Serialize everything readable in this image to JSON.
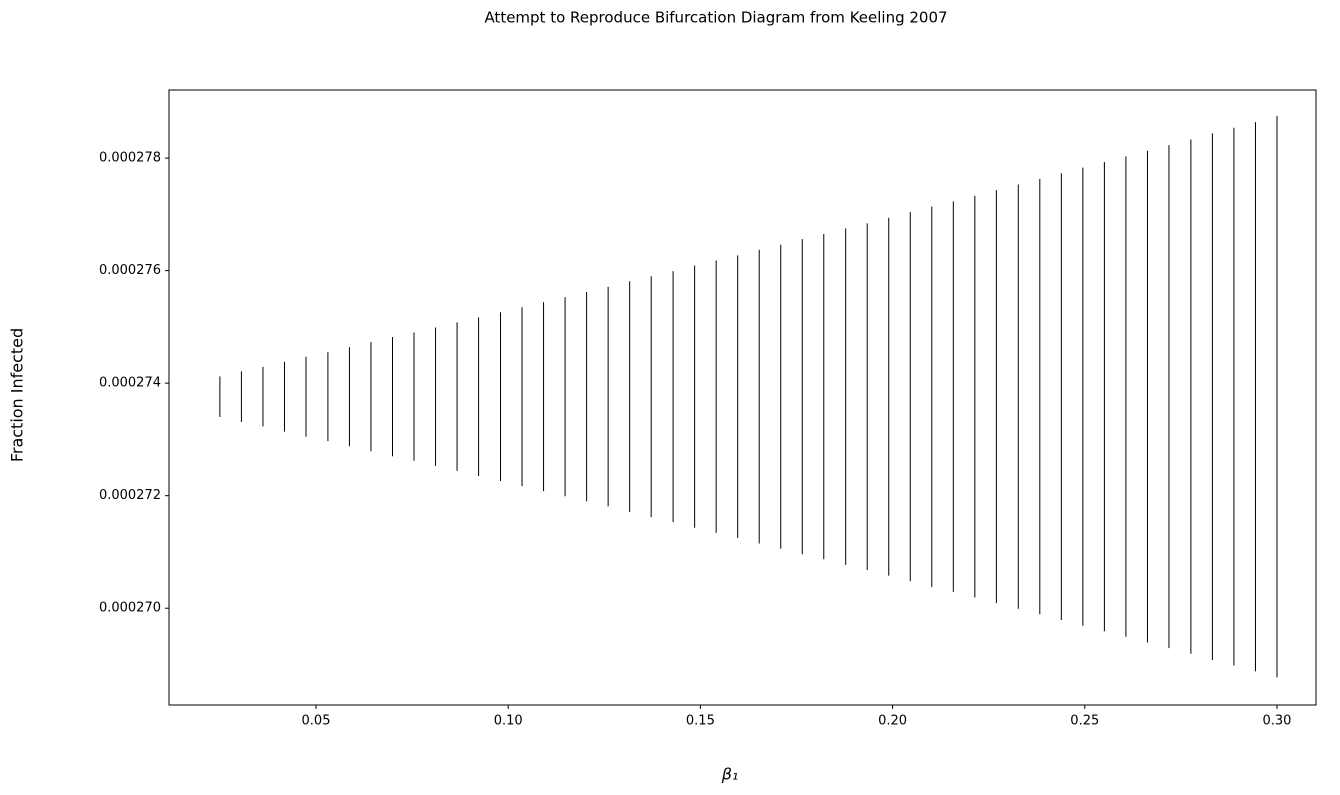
{
  "chart_data": {
    "type": "range",
    "title": "Attempt to Reproduce Bifurcation Diagram from Keeling 2007",
    "xlabel": "β₁",
    "ylabel": "Fraction Infected",
    "color": "#000000",
    "x": [
      0.025,
      0.0306,
      0.0362,
      0.0418,
      0.0474,
      0.0531,
      0.0587,
      0.0643,
      0.0699,
      0.0755,
      0.0811,
      0.0867,
      0.0923,
      0.098,
      0.1036,
      0.1092,
      0.1148,
      0.1204,
      0.126,
      0.1316,
      0.1372,
      0.1429,
      0.1485,
      0.1541,
      0.1597,
      0.1653,
      0.1709,
      0.1765,
      0.1821,
      0.1878,
      0.1934,
      0.199,
      0.2046,
      0.2102,
      0.2158,
      0.2214,
      0.227,
      0.2327,
      0.2383,
      0.2439,
      0.2495,
      0.2551,
      0.2607,
      0.2663,
      0.2719,
      0.2776,
      0.2832,
      0.2888,
      0.2944,
      0.3
    ],
    "high": [
      0.00027412,
      0.00027421,
      0.00027429,
      0.00027438,
      0.00027447,
      0.00027455,
      0.00027464,
      0.00027473,
      0.00027482,
      0.0002749,
      0.00027499,
      0.00027508,
      0.00027517,
      0.00027526,
      0.00027535,
      0.00027544,
      0.00027553,
      0.00027562,
      0.00027571,
      0.00027581,
      0.0002759,
      0.00027599,
      0.00027609,
      0.00027618,
      0.00027627,
      0.00027637,
      0.00027646,
      0.00027656,
      0.00027665,
      0.00027675,
      0.00027684,
      0.00027694,
      0.00027704,
      0.00027714,
      0.00027723,
      0.00027733,
      0.00027743,
      0.00027753,
      0.00027763,
      0.00027773,
      0.00027783,
      0.00027793,
      0.00027803,
      0.00027813,
      0.00027823,
      0.00027833,
      0.00027844,
      0.00027854,
      0.00027864,
      0.00027875
    ],
    "low": [
      0.0002734,
      0.00027331,
      0.00027323,
      0.00027314,
      0.00027305,
      0.00027297,
      0.00027288,
      0.00027279,
      0.0002727,
      0.00027262,
      0.00027253,
      0.00027244,
      0.00027235,
      0.00027226,
      0.00027217,
      0.00027208,
      0.00027199,
      0.0002719,
      0.00027181,
      0.00027171,
      0.00027162,
      0.00027153,
      0.00027143,
      0.00027134,
      0.00027125,
      0.00027115,
      0.00027106,
      0.00027096,
      0.00027087,
      0.00027077,
      0.00027068,
      0.00027058,
      0.00027048,
      0.00027038,
      0.00027029,
      0.00027019,
      0.00027009,
      0.00026999,
      0.00026989,
      0.00026979,
      0.00026969,
      0.00026959,
      0.00026949,
      0.00026939,
      0.00026929,
      0.00026919,
      0.00026908,
      0.00026898,
      0.00026888,
      0.00026877
    ],
    "xlim": [
      0.01176,
      0.31015
    ],
    "xticks": [
      0.05,
      {
        "value": 0.1,
        "label": "0.10"
      },
      0.15,
      {
        "value": 0.2,
        "label": "0.20"
      },
      0.25,
      {
        "value": 0.3,
        "label": "0.30"
      }
    ],
    "ylim": [
      0.00026828,
      0.00027921
    ],
    "yticks": [
      {
        "value": 0.00027,
        "label": "0.000270"
      },
      0.000272,
      0.000274,
      0.000276,
      0.000278
    ],
    "grid": false
  }
}
